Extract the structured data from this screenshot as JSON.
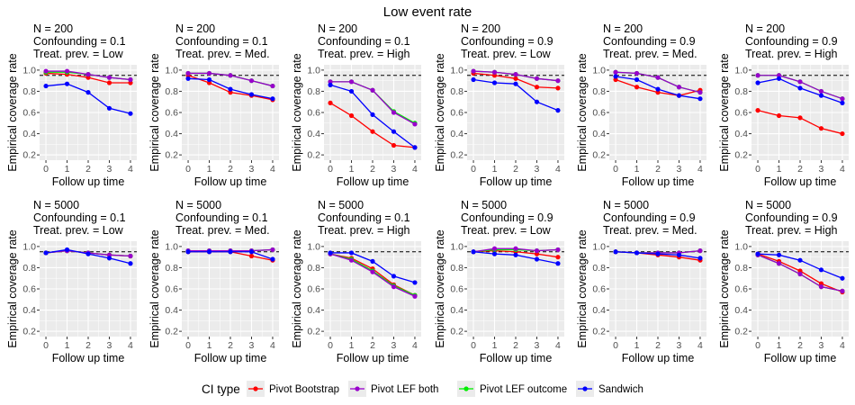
{
  "title": "Low event rate",
  "colors": {
    "Pivot Bootstrap": "#ff0000",
    "Pivot LEF both": "#9900cc",
    "Pivot LEF outcome": "#00ee00",
    "Sandwich": "#0000ff",
    "panel_bg": "#ebebeb",
    "grid": "#ffffff",
    "reference_line": "#000000"
  },
  "legend": {
    "title": "CI type",
    "items": [
      "Pivot Bootstrap",
      "Pivot LEF both",
      "Pivot LEF outcome",
      "Sandwich"
    ],
    "position": "bottom"
  },
  "chart_data": {
    "type": "line",
    "layout": "facet grid 2 rows x 6 columns",
    "xlabel": "Follow up time",
    "ylabel": "Empirical coverage rate",
    "x": [
      0,
      1,
      2,
      3,
      4
    ],
    "x_ticks": [
      0,
      1,
      2,
      3,
      4
    ],
    "ylim": [
      0.15,
      1.05
    ],
    "y_ticks": [
      0.2,
      0.4,
      0.6,
      0.8,
      1.0
    ],
    "y_tick_labels": [
      "0.2",
      "0.4",
      "0.6",
      "0.8",
      "1.0"
    ],
    "reference_line": {
      "y": 0.95,
      "style": "dashed"
    },
    "grid": true,
    "panels": [
      {
        "title_lines": [
          "N = 200",
          "Confounding = 0.1",
          "Treat. prev. = Low"
        ],
        "series": [
          {
            "name": "Pivot Bootstrap",
            "values": [
              0.97,
              0.96,
              0.93,
              0.88,
              0.88
            ]
          },
          {
            "name": "Pivot LEF both",
            "values": [
              0.99,
              0.99,
              0.96,
              0.93,
              0.91
            ]
          },
          {
            "name": "Pivot LEF outcome",
            "values": [
              0.98,
              0.98,
              0.96,
              0.93,
              0.91
            ]
          },
          {
            "name": "Sandwich",
            "values": [
              0.85,
              0.87,
              0.79,
              0.64,
              0.59
            ]
          }
        ]
      },
      {
        "title_lines": [
          "N = 200",
          "Confounding = 0.1",
          "Treat. prev. = Med."
        ],
        "series": [
          {
            "name": "Pivot Bootstrap",
            "values": [
              0.95,
              0.88,
              0.79,
              0.76,
              0.72
            ]
          },
          {
            "name": "Pivot LEF both",
            "values": [
              0.97,
              0.97,
              0.95,
              0.9,
              0.85
            ]
          },
          {
            "name": "Pivot LEF outcome",
            "values": [
              0.97,
              0.97,
              0.95,
              0.9,
              0.85
            ]
          },
          {
            "name": "Sandwich",
            "values": [
              0.92,
              0.91,
              0.82,
              0.77,
              0.73
            ]
          }
        ]
      },
      {
        "title_lines": [
          "N = 200",
          "Confounding = 0.1",
          "Treat. prev. = High"
        ],
        "series": [
          {
            "name": "Pivot Bootstrap",
            "values": [
              0.69,
              0.57,
              0.42,
              0.29,
              0.27
            ]
          },
          {
            "name": "Pivot LEF both",
            "values": [
              0.89,
              0.89,
              0.81,
              0.6,
              0.49
            ]
          },
          {
            "name": "Pivot LEF outcome",
            "values": [
              0.89,
              0.89,
              0.81,
              0.61,
              0.5
            ]
          },
          {
            "name": "Sandwich",
            "values": [
              0.86,
              0.8,
              0.58,
              0.42,
              0.27
            ]
          }
        ]
      },
      {
        "title_lines": [
          "N = 200",
          "Confounding = 0.9",
          "Treat. prev. = Low"
        ],
        "series": [
          {
            "name": "Pivot Bootstrap",
            "values": [
              0.97,
              0.95,
              0.92,
              0.84,
              0.83
            ]
          },
          {
            "name": "Pivot LEF both",
            "values": [
              0.99,
              0.98,
              0.96,
              0.92,
              0.9
            ]
          },
          {
            "name": "Pivot LEF outcome",
            "values": [
              0.99,
              0.98,
              0.96,
              0.92,
              0.9
            ]
          },
          {
            "name": "Sandwich",
            "values": [
              0.91,
              0.88,
              0.87,
              0.7,
              0.62
            ]
          }
        ]
      },
      {
        "title_lines": [
          "N = 200",
          "Confounding = 0.9",
          "Treat. prev. = Med."
        ],
        "series": [
          {
            "name": "Pivot Bootstrap",
            "values": [
              0.91,
              0.84,
              0.79,
              0.76,
              0.81
            ]
          },
          {
            "name": "Pivot LEF both",
            "values": [
              0.98,
              0.97,
              0.93,
              0.84,
              0.79
            ]
          },
          {
            "name": "Pivot LEF outcome",
            "values": [
              0.98,
              0.97,
              0.93,
              0.84,
              0.79
            ]
          },
          {
            "name": "Sandwich",
            "values": [
              0.94,
              0.91,
              0.82,
              0.76,
              0.73
            ]
          }
        ]
      },
      {
        "title_lines": [
          "N = 200",
          "Confounding = 0.9",
          "Treat. prev. = High"
        ],
        "series": [
          {
            "name": "Pivot Bootstrap",
            "values": [
              0.62,
              0.57,
              0.55,
              0.45,
              0.4
            ]
          },
          {
            "name": "Pivot LEF both",
            "values": [
              0.95,
              0.95,
              0.89,
              0.8,
              0.73
            ]
          },
          {
            "name": "Pivot LEF outcome",
            "values": [
              0.95,
              0.95,
              0.89,
              0.8,
              0.73
            ]
          },
          {
            "name": "Sandwich",
            "values": [
              0.88,
              0.92,
              0.83,
              0.76,
              0.69
            ]
          }
        ]
      },
      {
        "title_lines": [
          "N = 5000",
          "Confounding = 0.1",
          "Treat. prev. = Low"
        ],
        "series": [
          {
            "name": "Pivot Bootstrap",
            "values": [
              0.94,
              0.96,
              0.94,
              0.92,
              0.91
            ]
          },
          {
            "name": "Pivot LEF both",
            "values": [
              0.94,
              0.96,
              0.94,
              0.92,
              0.91
            ]
          },
          {
            "name": "Pivot LEF outcome",
            "values": [
              0.94,
              0.96,
              0.94,
              0.92,
              0.91
            ]
          },
          {
            "name": "Sandwich",
            "values": [
              0.94,
              0.97,
              0.93,
              0.89,
              0.84
            ]
          }
        ]
      },
      {
        "title_lines": [
          "N = 5000",
          "Confounding = 0.1",
          "Treat. prev. = Med."
        ],
        "series": [
          {
            "name": "Pivot Bootstrap",
            "values": [
              0.95,
              0.95,
              0.95,
              0.91,
              0.87
            ]
          },
          {
            "name": "Pivot LEF both",
            "values": [
              0.96,
              0.96,
              0.96,
              0.96,
              0.97
            ]
          },
          {
            "name": "Pivot LEF outcome",
            "values": [
              0.96,
              0.96,
              0.96,
              0.96,
              0.97
            ]
          },
          {
            "name": "Sandwich",
            "values": [
              0.95,
              0.95,
              0.95,
              0.95,
              0.88
            ]
          }
        ]
      },
      {
        "title_lines": [
          "N = 5000",
          "Confounding = 0.1",
          "Treat. prev. = High"
        ],
        "series": [
          {
            "name": "Pivot Bootstrap",
            "values": [
              0.93,
              0.89,
              0.79,
              0.64,
              0.54
            ]
          },
          {
            "name": "Pivot LEF both",
            "values": [
              0.93,
              0.87,
              0.76,
              0.62,
              0.53
            ]
          },
          {
            "name": "Pivot LEF outcome",
            "values": [
              0.93,
              0.88,
              0.77,
              0.63,
              0.54
            ]
          },
          {
            "name": "Sandwich",
            "values": [
              0.94,
              0.94,
              0.86,
              0.72,
              0.66
            ]
          }
        ]
      },
      {
        "title_lines": [
          "N = 5000",
          "Confounding = 0.9",
          "Treat. prev. = Low"
        ],
        "series": [
          {
            "name": "Pivot Bootstrap",
            "values": [
              0.95,
              0.96,
              0.95,
              0.93,
              0.9
            ]
          },
          {
            "name": "Pivot LEF both",
            "values": [
              0.95,
              0.98,
              0.98,
              0.96,
              0.97
            ]
          },
          {
            "name": "Pivot LEF outcome",
            "values": [
              0.95,
              0.97,
              0.97,
              0.96,
              0.97
            ]
          },
          {
            "name": "Sandwich",
            "values": [
              0.95,
              0.93,
              0.92,
              0.88,
              0.84
            ]
          }
        ]
      },
      {
        "title_lines": [
          "N = 5000",
          "Confounding = 0.9",
          "Treat. prev. = Med."
        ],
        "series": [
          {
            "name": "Pivot Bootstrap",
            "values": [
              0.95,
              0.94,
              0.92,
              0.9,
              0.87
            ]
          },
          {
            "name": "Pivot LEF both",
            "values": [
              0.95,
              0.94,
              0.94,
              0.94,
              0.96
            ]
          },
          {
            "name": "Pivot LEF outcome",
            "values": [
              0.95,
              0.94,
              0.94,
              0.94,
              0.96
            ]
          },
          {
            "name": "Sandwich",
            "values": [
              0.95,
              0.94,
              0.93,
              0.92,
              0.89
            ]
          }
        ]
      },
      {
        "title_lines": [
          "N = 5000",
          "Confounding = 0.9",
          "Treat. prev. = High"
        ],
        "series": [
          {
            "name": "Pivot Bootstrap",
            "values": [
              0.93,
              0.86,
              0.77,
              0.65,
              0.57
            ]
          },
          {
            "name": "Pivot LEF both",
            "values": [
              0.92,
              0.84,
              0.74,
              0.62,
              0.58
            ]
          },
          {
            "name": "Pivot LEF outcome",
            "values": [
              0.92,
              0.84,
              0.74,
              0.62,
              0.58
            ]
          },
          {
            "name": "Sandwich",
            "values": [
              0.93,
              0.92,
              0.87,
              0.78,
              0.7
            ]
          }
        ]
      }
    ]
  }
}
